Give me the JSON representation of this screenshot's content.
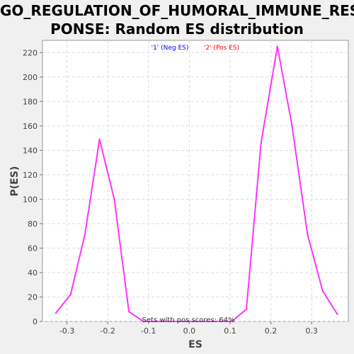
{
  "chart_data": {
    "type": "line",
    "title_line1": "GO_REGULATION_OF_HUMORAL_IMMUNE_RES",
    "title_line2": "PONSE: Random ES distribution",
    "xlabel": "ES",
    "ylabel": "P(ES)",
    "xlim": [
      -0.36,
      0.39
    ],
    "ylim": [
      0,
      230
    ],
    "xticks": [
      -0.3,
      -0.2,
      -0.1,
      0.0,
      0.1,
      0.2,
      0.3
    ],
    "xtick_labels": [
      "-0.3",
      "-0.2",
      "-0.1",
      "0.0",
      "0.1",
      "0.2",
      "0.3"
    ],
    "yticks": [
      0,
      20,
      40,
      60,
      80,
      100,
      120,
      140,
      160,
      180,
      200,
      220
    ],
    "ytick_labels": [
      "0",
      "20",
      "40",
      "60",
      "80",
      "100",
      "120",
      "140",
      "160",
      "180",
      "200",
      "220"
    ],
    "grid": true,
    "legend": [
      {
        "label": "'1' (Neg ES)",
        "color": "#0000ff"
      },
      {
        "label": "'2' (Pos ES)",
        "color": "#ff0000"
      }
    ],
    "legend_position": "top-center",
    "annotation": "Sets with pos scores: 64%",
    "series": [
      {
        "color": "#ff33ff",
        "x": [
          -0.327,
          -0.291,
          -0.256,
          -0.22,
          -0.184,
          -0.148,
          -0.112,
          -0.076,
          -0.04,
          -0.004,
          0.032,
          0.068,
          0.104,
          0.14,
          0.176,
          0.216,
          0.252,
          0.29,
          0.327,
          0.363
        ],
        "y": [
          7,
          22,
          71,
          149,
          100,
          8,
          0,
          0,
          0,
          0,
          0,
          0,
          0,
          10,
          146,
          225,
          160,
          71,
          25,
          6
        ]
      }
    ]
  }
}
